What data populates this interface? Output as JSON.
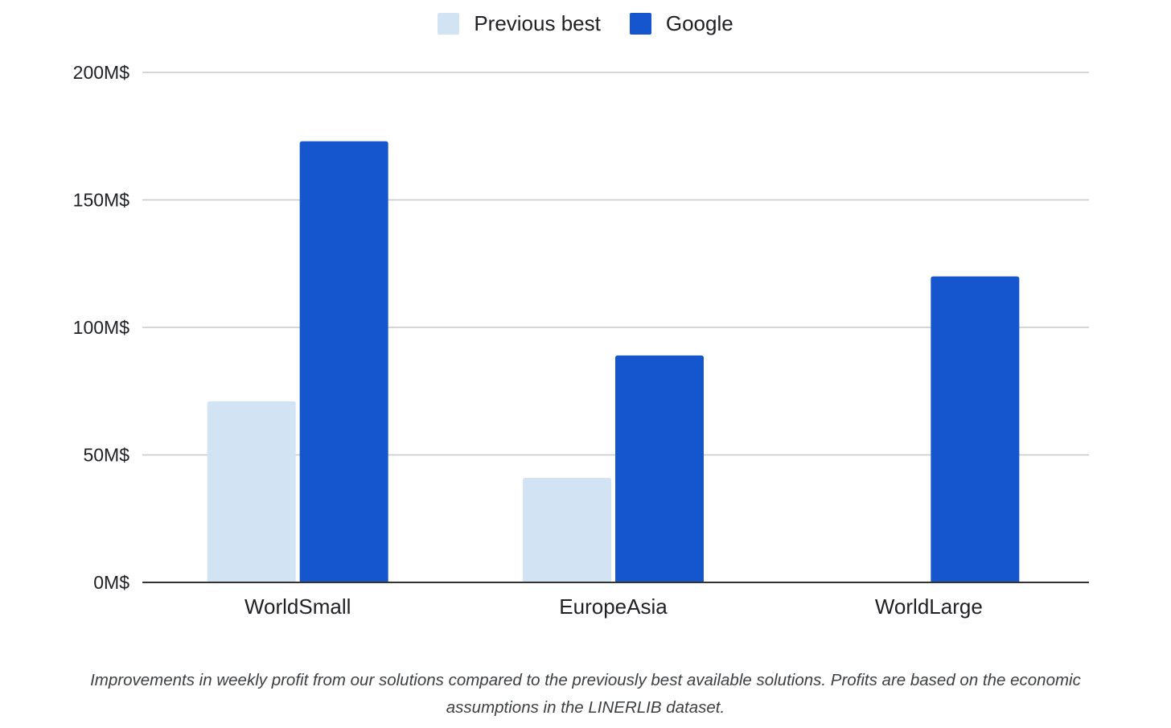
{
  "legend": {
    "position": "top-center",
    "items": [
      {
        "label": "Previous best",
        "color": "#d2e3f3"
      },
      {
        "label": "Google",
        "color": "#1556cf"
      }
    ]
  },
  "chart_data": {
    "type": "bar",
    "title": "",
    "xlabel": "",
    "ylabel": "",
    "categories": [
      "WorldSmall",
      "EuropeAsia",
      "WorldLarge"
    ],
    "series": [
      {
        "name": "Previous best",
        "color": "#d2e3f3",
        "values": [
          71,
          41,
          0
        ]
      },
      {
        "name": "Google",
        "color": "#1556cf",
        "values": [
          173,
          89,
          120
        ]
      }
    ],
    "ylim": [
      0,
      200
    ],
    "yticks": [
      0,
      50,
      100,
      150,
      200
    ],
    "ytick_labels": [
      "0M$",
      "50M$",
      "100M$",
      "150M$",
      "200M$"
    ],
    "grid": true
  },
  "caption": "Improvements in weekly profit from our solutions compared to the previously best available solutions. Profits are based on the economic assumptions in the LINERLIB dataset."
}
